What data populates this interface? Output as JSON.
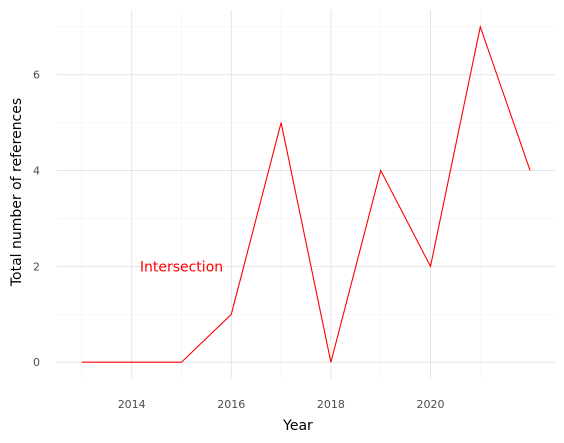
{
  "chart_data": {
    "type": "line",
    "xlabel": "Year",
    "ylabel": "Total number of references",
    "xlim": [
      2012.5,
      2022.5
    ],
    "ylim": [
      -0.35,
      7.35
    ],
    "x_ticks": [
      2014,
      2016,
      2018,
      2020
    ],
    "y_ticks": [
      0,
      2,
      4,
      6
    ],
    "grid": true,
    "series": [
      {
        "x": [
          2013,
          2014,
          2015,
          2016,
          2017,
          2018,
          2019,
          2020,
          2021,
          2022
        ],
        "values": [
          0,
          0,
          0,
          1,
          5,
          0,
          4,
          2,
          7,
          4
        ],
        "color": "#ff0000"
      }
    ],
    "annotations": [
      {
        "text": "Intersection",
        "x": 2015,
        "y": 2,
        "color": "#ff0000"
      }
    ]
  }
}
